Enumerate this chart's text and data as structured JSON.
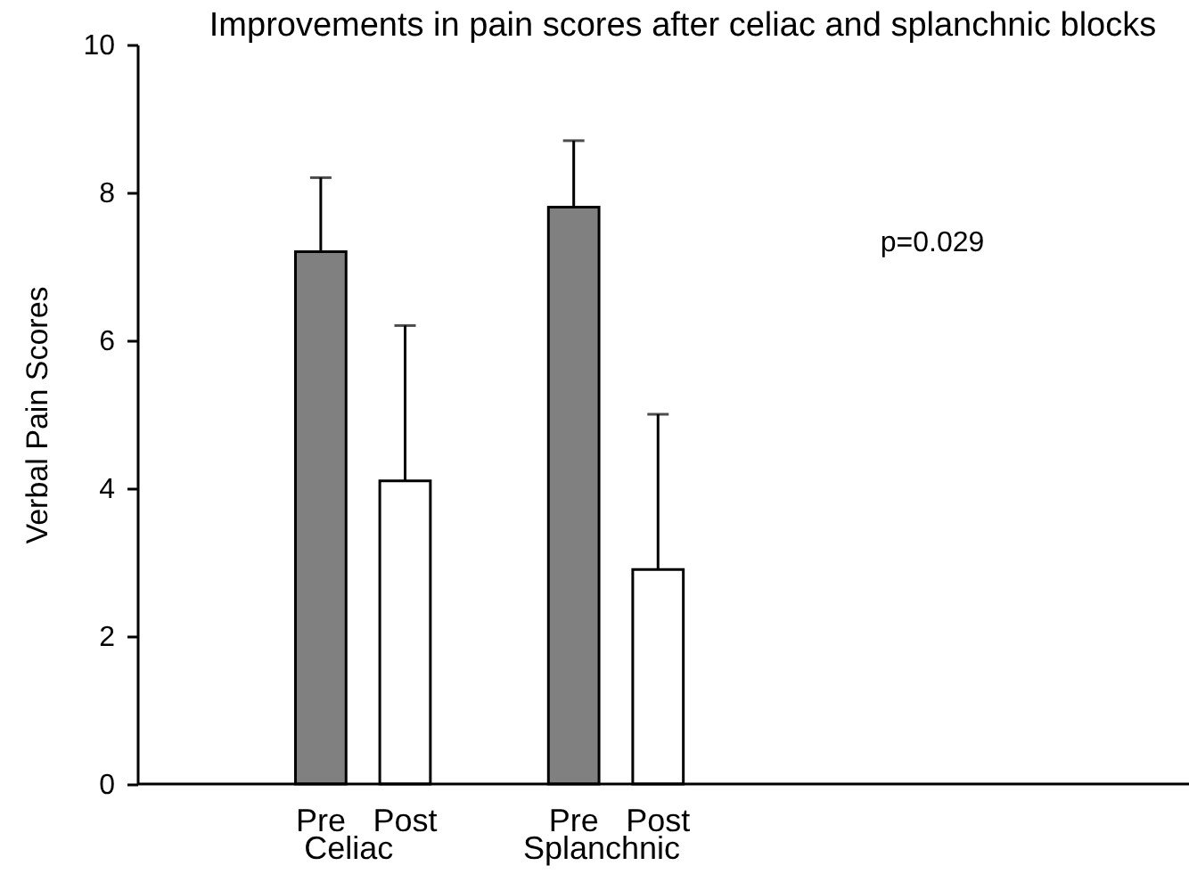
{
  "chart_data": {
    "type": "bar",
    "title": "Improvements in pain scores after celiac and splanchnic blocks",
    "ylabel": "Verbal Pain Scores",
    "categories": [
      "Pre",
      "Post",
      null,
      "Pre",
      "Post"
    ],
    "values": [
      7.2,
      4.1,
      null,
      7.8,
      2.9
    ],
    "colors": [
      "#808080",
      "#ffffff",
      null,
      "#808080",
      "#ffffff"
    ],
    "errors": [
      [
        7.2,
        8.2
      ],
      [
        4.1,
        6.2
      ],
      null,
      [
        7.8,
        8.7
      ],
      [
        2.9,
        5.0
      ]
    ],
    "ylim": [
      0,
      10
    ],
    "yticks": [
      0,
      2,
      4,
      6,
      8,
      10
    ],
    "annotations": [
      "Celiac",
      "Splanchnic",
      "p=0.029"
    ]
  }
}
